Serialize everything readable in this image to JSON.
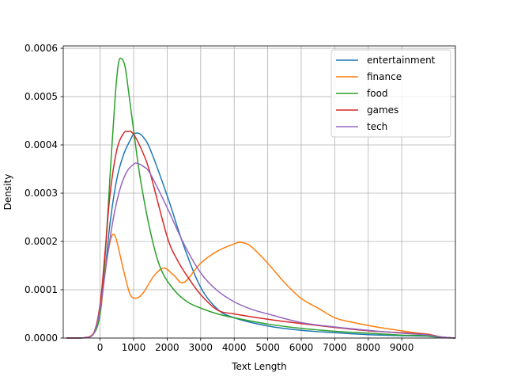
{
  "chart_data": {
    "type": "line",
    "title": "",
    "xlabel": "Text Length",
    "ylabel": "Density",
    "xlim": [
      -1100,
      10600
    ],
    "ylim": [
      0,
      0.000605
    ],
    "xticks": [
      0,
      1000,
      2000,
      3000,
      4000,
      5000,
      6000,
      7000,
      8000,
      9000
    ],
    "yticks": [
      0,
      0.0001,
      0.0002,
      0.0003,
      0.0004,
      0.0005,
      0.0006
    ],
    "xtick_labels": [
      "0",
      "1000",
      "2000",
      "3000",
      "4000",
      "5000",
      "6000",
      "7000",
      "8000",
      "9000"
    ],
    "ytick_labels": [
      "0.0000",
      "0.0001",
      "0.0002",
      "0.0003",
      "0.0004",
      "0.0005",
      "0.0006"
    ],
    "grid": true,
    "legend_position": "top-right",
    "series": [
      {
        "name": "entertainment",
        "color": "#1f77b4",
        "x": [
          -1000,
          -500,
          -200,
          0,
          150,
          300,
          500,
          700,
          900,
          1000,
          1150,
          1300,
          1500,
          2000,
          2500,
          3000,
          3500,
          4000,
          5000,
          6000,
          7000,
          8000,
          9000,
          9700,
          10200,
          10600
        ],
        "y": [
          0,
          5e-07,
          1e-05,
          6e-05,
          0.00014,
          0.00024,
          0.00033,
          0.00038,
          0.00041,
          0.000422,
          0.000424,
          0.000415,
          0.00039,
          0.000295,
          0.00019,
          0.000105,
          6e-05,
          4.2e-05,
          2.5e-05,
          1.6e-05,
          1.1e-05,
          7e-06,
          5e-06,
          4e-06,
          1e-06,
          0
        ]
      },
      {
        "name": "finance",
        "color": "#ff7f0e",
        "x": [
          -1000,
          -500,
          -200,
          0,
          150,
          300,
          400,
          500,
          700,
          900,
          1100,
          1300,
          1600,
          1900,
          2200,
          2500,
          3000,
          3500,
          4000,
          4200,
          4500,
          5000,
          5500,
          6000,
          6500,
          7000,
          7500,
          8000,
          8500,
          9000,
          9500,
          9800,
          10200,
          10600
        ],
        "y": [
          0,
          5e-07,
          1e-05,
          5e-05,
          0.00014,
          0.0002,
          0.000215,
          0.0002,
          0.00014,
          9e-05,
          8.3e-05,
          9.5e-05,
          0.000128,
          0.000145,
          0.00013,
          0.000115,
          0.000155,
          0.00018,
          0.000195,
          0.000198,
          0.00019,
          0.000155,
          0.000115,
          8.2e-05,
          6.2e-05,
          4.2e-05,
          3.3e-05,
          2.6e-05,
          2e-05,
          1.5e-05,
          1e-05,
          8e-06,
          2e-06,
          0
        ]
      },
      {
        "name": "food",
        "color": "#2ca02c",
        "x": [
          -1000,
          -500,
          -200,
          0,
          150,
          300,
          450,
          550,
          650,
          750,
          850,
          1000,
          1200,
          1500,
          1800,
          2200,
          2600,
          3000,
          3500,
          4000,
          5000,
          6000,
          7000,
          8000,
          9000,
          9700,
          10200,
          10600
        ],
        "y": [
          0,
          5e-07,
          8e-06,
          5e-05,
          0.00017,
          0.00034,
          0.0005,
          0.00057,
          0.000578,
          0.00056,
          0.00051,
          0.00043,
          0.00033,
          0.00022,
          0.000145,
          0.0001,
          7.5e-05,
          6.2e-05,
          5e-05,
          4.2e-05,
          2.9e-05,
          2e-05,
          1.4e-05,
          1e-05,
          6e-06,
          5e-06,
          1e-06,
          0
        ]
      },
      {
        "name": "games",
        "color": "#d62728",
        "x": [
          -1000,
          -500,
          -200,
          0,
          150,
          300,
          500,
          700,
          850,
          950,
          1100,
          1300,
          1500,
          2000,
          2300,
          2600,
          3000,
          3500,
          4000,
          5000,
          6000,
          7000,
          8000,
          9000,
          9700,
          10200,
          10600
        ],
        "y": [
          0,
          5e-07,
          8e-06,
          7e-05,
          0.00018,
          0.0003,
          0.00039,
          0.000424,
          0.000428,
          0.000426,
          0.00041,
          0.00038,
          0.00034,
          0.00021,
          0.000162,
          0.000128,
          9e-05,
          5.8e-05,
          5e-05,
          3.9e-05,
          3e-05,
          2.2e-05,
          1.5e-05,
          1.1e-05,
          8e-06,
          2e-06,
          0
        ]
      },
      {
        "name": "tech",
        "color": "#9467bd",
        "x": [
          -1000,
          -500,
          -200,
          0,
          200,
          400,
          600,
          800,
          1000,
          1100,
          1300,
          1500,
          2000,
          2500,
          3000,
          3500,
          4000,
          4500,
          5000,
          6000,
          7000,
          8000,
          9000,
          9700,
          10200,
          10600
        ],
        "y": [
          0,
          5e-07,
          8e-06,
          6e-05,
          0.00016,
          0.00025,
          0.00031,
          0.000345,
          0.00036,
          0.000362,
          0.000355,
          0.00034,
          0.00027,
          0.000195,
          0.000135,
          9.8e-05,
          7.5e-05,
          6e-05,
          5e-05,
          3.2e-05,
          2.3e-05,
          1.6e-05,
          1e-05,
          7e-06,
          2e-06,
          0
        ]
      }
    ]
  }
}
